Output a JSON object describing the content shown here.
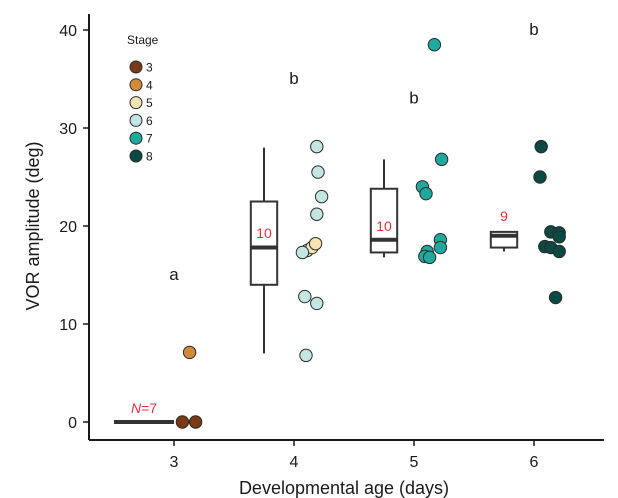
{
  "chart_data": {
    "type": "box",
    "xlabel": "Developmental age (days)",
    "ylabel": "VOR amplitude (deg)",
    "ylim": [
      -2,
      42
    ],
    "x_ticks": [
      "3",
      "4",
      "5",
      "6"
    ],
    "y_ticks": [
      0,
      10,
      20,
      30,
      40
    ],
    "grid": false,
    "legend": {
      "title": "Stage",
      "position": "top-left",
      "entries": [
        {
          "label": "3",
          "color": "#7a3a15"
        },
        {
          "label": "4",
          "color": "#cf8a3a"
        },
        {
          "label": "5",
          "color": "#f6e3b4"
        },
        {
          "label": "6",
          "color": "#c3e6e2"
        },
        {
          "label": "7",
          "color": "#1fa89e"
        },
        {
          "label": "8",
          "color": "#0b4a43"
        }
      ]
    },
    "groups": [
      {
        "age": 3,
        "letter": "a",
        "letter_y": 14.5,
        "n_prefix": "N",
        "n_suffix": "=7",
        "n_y": 0.9,
        "box": {
          "median": 0,
          "q1": 0,
          "q3": 0,
          "whisker_low": 0,
          "whisker_high": 0
        }
      },
      {
        "age": 4,
        "letter": "b",
        "letter_y": 34.5,
        "n": "10",
        "n_y": 18.8,
        "box": {
          "median": 17.8,
          "q1": 14,
          "q3": 22.5,
          "whisker_low": 7,
          "whisker_high": 28
        }
      },
      {
        "age": 5,
        "letter": "b",
        "letter_y": 32.5,
        "n": "10",
        "n_y": 19.5,
        "box": {
          "median": 18.6,
          "q1": 17.3,
          "q3": 23.8,
          "whisker_low": 16.8,
          "whisker_high": 26.8
        }
      },
      {
        "age": 6,
        "letter": "b",
        "letter_y": 39.5,
        "n": "9",
        "n_y": 20.5,
        "box": {
          "median": 19,
          "q1": 17.8,
          "q3": 19.4,
          "whisker_low": 17.4,
          "whisker_high": 19.4
        }
      }
    ],
    "points": [
      {
        "x": 3.07,
        "y": 0.0,
        "stage": "3"
      },
      {
        "x": 3.18,
        "y": 0.0,
        "stage": "3"
      },
      {
        "x": 3.13,
        "y": 7.1,
        "stage": "4"
      },
      {
        "x": 4.11,
        "y": 17.5,
        "stage": "6"
      },
      {
        "x": 4.15,
        "y": 17.8,
        "stage": "5"
      },
      {
        "x": 4.18,
        "y": 18.2,
        "stage": "5"
      },
      {
        "x": 4.07,
        "y": 17.3,
        "stage": "6"
      },
      {
        "x": 4.19,
        "y": 28.1,
        "stage": "6"
      },
      {
        "x": 4.2,
        "y": 25.5,
        "stage": "6"
      },
      {
        "x": 4.23,
        "y": 23.0,
        "stage": "6"
      },
      {
        "x": 4.19,
        "y": 21.2,
        "stage": "6"
      },
      {
        "x": 4.09,
        "y": 12.8,
        "stage": "6"
      },
      {
        "x": 4.19,
        "y": 12.1,
        "stage": "6"
      },
      {
        "x": 4.1,
        "y": 6.8,
        "stage": "6"
      },
      {
        "x": 5.17,
        "y": 38.5,
        "stage": "7"
      },
      {
        "x": 5.23,
        "y": 26.8,
        "stage": "7"
      },
      {
        "x": 5.07,
        "y": 24.0,
        "stage": "7"
      },
      {
        "x": 5.1,
        "y": 23.3,
        "stage": "7"
      },
      {
        "x": 5.22,
        "y": 18.6,
        "stage": "7"
      },
      {
        "x": 5.22,
        "y": 17.8,
        "stage": "7"
      },
      {
        "x": 5.11,
        "y": 17.4,
        "stage": "7"
      },
      {
        "x": 5.09,
        "y": 16.9,
        "stage": "7"
      },
      {
        "x": 5.13,
        "y": 16.8,
        "stage": "7"
      },
      {
        "x": 6.06,
        "y": 28.1,
        "stage": "8"
      },
      {
        "x": 6.05,
        "y": 25.0,
        "stage": "8"
      },
      {
        "x": 6.14,
        "y": 19.4,
        "stage": "8"
      },
      {
        "x": 6.21,
        "y": 19.3,
        "stage": "8"
      },
      {
        "x": 6.21,
        "y": 18.9,
        "stage": "8"
      },
      {
        "x": 6.09,
        "y": 17.9,
        "stage": "8"
      },
      {
        "x": 6.14,
        "y": 17.8,
        "stage": "8"
      },
      {
        "x": 6.21,
        "y": 17.4,
        "stage": "8"
      },
      {
        "x": 6.18,
        "y": 12.7,
        "stage": "8"
      }
    ]
  }
}
